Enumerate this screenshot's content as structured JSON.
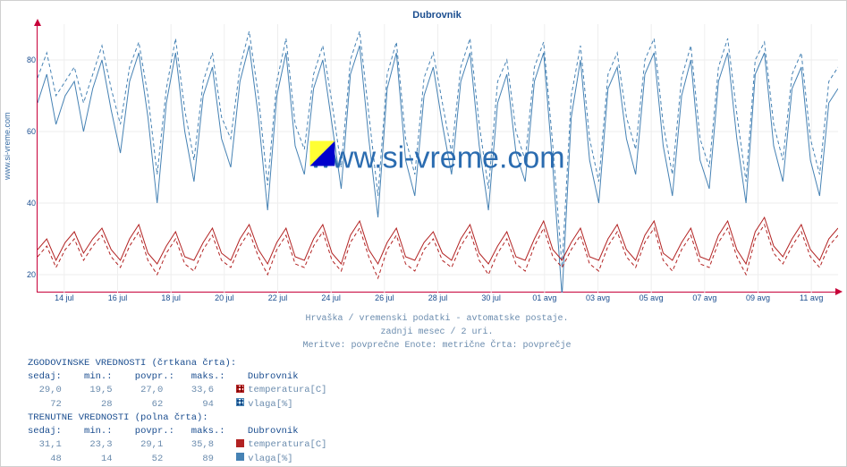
{
  "sidebar_url": "www.si-vreme.com",
  "chart": {
    "title": "Dubrovnik",
    "type": "line",
    "background_color": "#ffffff",
    "grid_color": "#eeeeee",
    "axis_color": "#c70039",
    "ylim": [
      15,
      90
    ],
    "ytick_step": 20,
    "yticks": [
      20,
      40,
      60,
      80
    ],
    "xticks": [
      "14 jul",
      "16 jul",
      "18 jul",
      "20 jul",
      "22 jul",
      "24 jul",
      "26 jul",
      "28 jul",
      "30 jul",
      "01 avg",
      "03 avg",
      "05 avg",
      "07 avg",
      "09 avg",
      "11 avg"
    ],
    "label_fontsize": 9,
    "title_fontsize": 11,
    "series": {
      "humidity_hist": {
        "color": "#4682b4",
        "dash": "4,3",
        "width": 1,
        "values": [
          75,
          82,
          70,
          74,
          78,
          68,
          76,
          84,
          72,
          62,
          78,
          85,
          70,
          48,
          72,
          86,
          66,
          52,
          74,
          82,
          64,
          58,
          78,
          88,
          70,
          45,
          74,
          86,
          62,
          55,
          76,
          84,
          68,
          50,
          80,
          88,
          65,
          42,
          76,
          85,
          58,
          48,
          75,
          82,
          68,
          54,
          78,
          86,
          62,
          44,
          74,
          80,
          60,
          52,
          78,
          85,
          56,
          22,
          70,
          84,
          58,
          46,
          76,
          82,
          64,
          55,
          80,
          86,
          62,
          48,
          75,
          84,
          58,
          50,
          78,
          86,
          65,
          46,
          80,
          85,
          62,
          52,
          76,
          82,
          58,
          48,
          74,
          78
        ]
      },
      "humidity_curr": {
        "color": "#4682b4",
        "dash": "",
        "width": 1,
        "values": [
          68,
          76,
          62,
          70,
          74,
          60,
          72,
          80,
          66,
          54,
          74,
          82,
          64,
          40,
          68,
          82,
          60,
          46,
          70,
          78,
          58,
          50,
          74,
          84,
          64,
          38,
          70,
          82,
          56,
          48,
          72,
          80,
          62,
          44,
          76,
          84,
          58,
          36,
          72,
          82,
          52,
          42,
          70,
          78,
          62,
          48,
          74,
          82,
          56,
          38,
          68,
          76,
          54,
          46,
          74,
          82,
          50,
          14,
          64,
          80,
          52,
          40,
          72,
          78,
          58,
          48,
          76,
          82,
          56,
          42,
          70,
          80,
          52,
          44,
          74,
          82,
          58,
          40,
          76,
          82,
          56,
          46,
          72,
          78,
          52,
          42,
          68,
          72
        ]
      },
      "temp_hist": {
        "color": "#b22222",
        "dash": "4,3",
        "width": 1,
        "values": [
          25,
          28,
          22,
          27,
          30,
          24,
          28,
          31,
          25,
          22,
          28,
          32,
          24,
          20,
          26,
          30,
          23,
          21,
          27,
          31,
          24,
          22,
          28,
          32,
          25,
          20,
          27,
          31,
          23,
          22,
          28,
          32,
          24,
          21,
          29,
          33,
          25,
          19,
          27,
          31,
          23,
          21,
          27,
          30,
          24,
          22,
          28,
          32,
          24,
          20,
          26,
          30,
          23,
          21,
          28,
          33,
          25,
          22,
          27,
          31,
          23,
          21,
          28,
          32,
          25,
          22,
          29,
          33,
          24,
          21,
          27,
          31,
          23,
          22,
          29,
          33,
          25,
          20,
          30,
          34,
          26,
          23,
          28,
          32,
          25,
          22,
          28,
          31
        ]
      },
      "temp_curr": {
        "color": "#b22222",
        "dash": "",
        "width": 1,
        "values": [
          27,
          30,
          24,
          29,
          32,
          26,
          30,
          33,
          27,
          24,
          30,
          34,
          26,
          23,
          28,
          32,
          25,
          24,
          29,
          33,
          26,
          24,
          30,
          34,
          27,
          23,
          29,
          33,
          25,
          24,
          30,
          34,
          26,
          23,
          31,
          35,
          27,
          23,
          29,
          33,
          25,
          24,
          29,
          32,
          26,
          24,
          30,
          34,
          26,
          23,
          28,
          32,
          25,
          24,
          30,
          35,
          27,
          24,
          29,
          33,
          25,
          24,
          30,
          34,
          27,
          24,
          31,
          35,
          26,
          24,
          29,
          33,
          25,
          24,
          31,
          35,
          27,
          23,
          32,
          36,
          28,
          25,
          30,
          34,
          27,
          24,
          30,
          33
        ]
      }
    },
    "watermark_text": "www.si-vreme.com",
    "watermark_logo_colors": [
      "#ffff33",
      "#0000cc"
    ]
  },
  "caption": {
    "line1": "Hrvaška / vremenski podatki - avtomatske postaje.",
    "line2": "zadnji mesec / 2 uri.",
    "line3": "Meritve: povprečne  Enote: metrične  Črta: povprečje"
  },
  "legend": {
    "hist_title": "ZGODOVINSKE VREDNOSTI (črtkana črta):",
    "curr_title": "TRENUTNE VREDNOSTI (polna črta):",
    "columns": {
      "c1": "sedaj:",
      "c2": "min.:",
      "c3": "povpr.:",
      "c4": "maks.:",
      "c5": "Dubrovnik"
    },
    "hist": {
      "temp": {
        "sedaj": "29,0",
        "min": "19,5",
        "povpr": "27,0",
        "maks": "33,6",
        "label": "temperatura[C]"
      },
      "humidity": {
        "sedaj": "72",
        "min": "28",
        "povpr": "62",
        "maks": "94",
        "label": "vlaga[%]"
      }
    },
    "curr": {
      "temp": {
        "sedaj": "31,1",
        "min": "23,3",
        "povpr": "29,1",
        "maks": "35,8",
        "label": "temperatura[C]"
      },
      "humidity": {
        "sedaj": "48",
        "min": "14",
        "povpr": "52",
        "maks": "89",
        "label": "vlaga[%]"
      }
    }
  }
}
